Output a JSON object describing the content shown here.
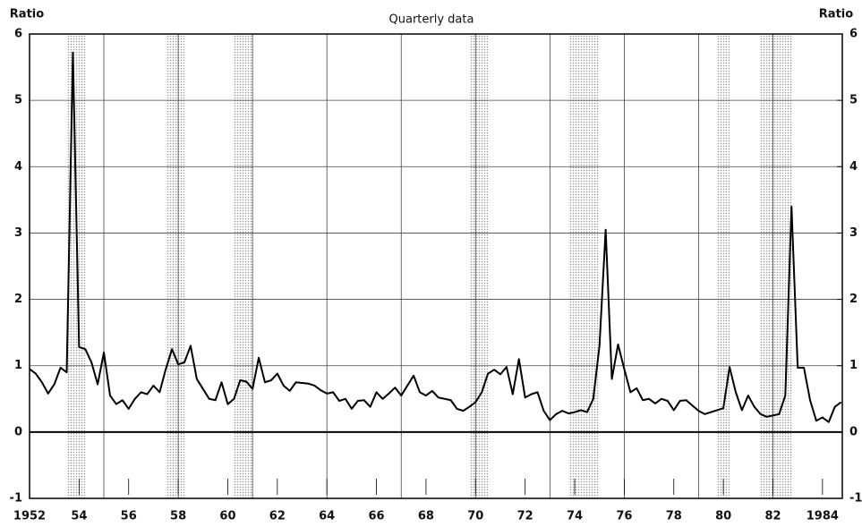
{
  "chart_data": {
    "type": "line",
    "title": "Quarterly data",
    "ylabel": "Ratio",
    "y2label": "Ratio",
    "x": [
      1952,
      1952.25,
      1952.5,
      1952.75,
      1953,
      1953.25,
      1953.5,
      1953.75,
      1954,
      1954.25,
      1954.5,
      1954.75,
      1955,
      1955.25,
      1955.5,
      1955.75,
      1956,
      1956.25,
      1956.5,
      1956.75,
      1957,
      1957.25,
      1957.5,
      1957.75,
      1958,
      1958.25,
      1958.5,
      1958.75,
      1959,
      1959.25,
      1959.5,
      1959.75,
      1960,
      1960.25,
      1960.5,
      1960.75,
      1961,
      1961.25,
      1961.5,
      1961.75,
      1962,
      1962.25,
      1962.5,
      1962.75,
      1963,
      1963.25,
      1963.5,
      1963.75,
      1964,
      1964.25,
      1964.5,
      1964.75,
      1965,
      1965.25,
      1965.5,
      1965.75,
      1966,
      1966.25,
      1966.5,
      1966.75,
      1967,
      1967.25,
      1967.5,
      1967.75,
      1968,
      1968.25,
      1968.5,
      1968.75,
      1969,
      1969.25,
      1969.5,
      1969.75,
      1970,
      1970.25,
      1970.5,
      1970.75,
      1971,
      1971.25,
      1971.5,
      1971.75,
      1972,
      1972.25,
      1972.5,
      1972.75,
      1973,
      1973.25,
      1973.5,
      1973.75,
      1974,
      1974.25,
      1974.5,
      1974.75,
      1975,
      1975.25,
      1975.5,
      1975.75,
      1976,
      1976.25,
      1976.5,
      1976.75,
      1977,
      1977.25,
      1977.5,
      1977.75,
      1978,
      1978.25,
      1978.5,
      1978.75,
      1979,
      1979.25,
      1979.5,
      1979.75,
      1980,
      1980.25,
      1980.5,
      1980.75,
      1981,
      1981.25,
      1981.5,
      1981.75,
      1982,
      1982.25,
      1982.5,
      1982.75,
      1983,
      1983.25,
      1983.5,
      1983.75,
      1984,
      1984.25,
      1984.5,
      1984.75
    ],
    "values": [
      0.95,
      0.88,
      0.75,
      0.58,
      0.72,
      0.97,
      0.9,
      5.72,
      1.28,
      1.25,
      1.05,
      0.72,
      1.2,
      0.55,
      0.42,
      0.48,
      0.35,
      0.5,
      0.6,
      0.57,
      0.7,
      0.6,
      0.95,
      1.25,
      1.02,
      1.05,
      1.3,
      0.8,
      0.65,
      0.5,
      0.48,
      0.75,
      0.42,
      0.5,
      0.78,
      0.76,
      0.65,
      1.12,
      0.75,
      0.78,
      0.88,
      0.7,
      0.62,
      0.75,
      0.74,
      0.73,
      0.7,
      0.63,
      0.58,
      0.6,
      0.47,
      0.5,
      0.35,
      0.47,
      0.48,
      0.38,
      0.6,
      0.5,
      0.58,
      0.67,
      0.55,
      0.7,
      0.85,
      0.6,
      0.55,
      0.62,
      0.52,
      0.5,
      0.48,
      0.35,
      0.32,
      0.38,
      0.45,
      0.6,
      0.88,
      0.94,
      0.87,
      0.98,
      0.57,
      1.1,
      0.52,
      0.57,
      0.6,
      0.32,
      0.18,
      0.27,
      0.32,
      0.28,
      0.3,
      0.33,
      0.3,
      0.5,
      1.3,
      3.05,
      0.8,
      1.32,
      0.95,
      0.6,
      0.66,
      0.48,
      0.5,
      0.43,
      0.5,
      0.47,
      0.33,
      0.47,
      0.48,
      0.4,
      0.32,
      0.27,
      0.3,
      0.33,
      0.36,
      0.98,
      0.6,
      0.33,
      0.55,
      0.38,
      0.27,
      0.23,
      0.25,
      0.27,
      0.55,
      3.4,
      0.97,
      0.97,
      0.48,
      0.17,
      0.22,
      0.15,
      0.38,
      0.45
    ],
    "color": "#000000",
    "xlim": [
      1952,
      1984.8
    ],
    "xticks": [
      {
        "value": 1952,
        "label": "1952"
      },
      {
        "value": 1954,
        "label": "54"
      },
      {
        "value": 1956,
        "label": "56"
      },
      {
        "value": 1958,
        "label": "58"
      },
      {
        "value": 1960,
        "label": "60"
      },
      {
        "value": 1962,
        "label": "62"
      },
      {
        "value": 1964,
        "label": "64"
      },
      {
        "value": 1966,
        "label": "66"
      },
      {
        "value": 1968,
        "label": "68"
      },
      {
        "value": 1970,
        "label": "70"
      },
      {
        "value": 1972,
        "label": "72"
      },
      {
        "value": 1974,
        "label": "74"
      },
      {
        "value": 1976,
        "label": "76"
      },
      {
        "value": 1978,
        "label": "78"
      },
      {
        "value": 1980,
        "label": "80"
      },
      {
        "value": 1982,
        "label": "82"
      },
      {
        "value": 1984,
        "label": "1984"
      }
    ],
    "vgrid": [
      1955,
      1958,
      1961,
      1964,
      1967,
      1970,
      1973,
      1976,
      1979,
      1982
    ],
    "ylim": [
      -1,
      6
    ],
    "yticks": [
      -1,
      0,
      1,
      2,
      3,
      4,
      5,
      6
    ],
    "y2lim": [
      -1,
      6
    ],
    "y2ticks": [
      -1,
      0,
      1,
      2,
      3,
      4,
      5,
      6
    ],
    "grid": true,
    "shaded_periods": [
      [
        1953.5,
        1954.25
      ],
      [
        1957.5,
        1958.25
      ],
      [
        1960.25,
        1961
      ],
      [
        1969.75,
        1970.5
      ],
      [
        1973.75,
        1975
      ],
      [
        1979.75,
        1980.25
      ],
      [
        1981.5,
        1982.75
      ]
    ]
  }
}
